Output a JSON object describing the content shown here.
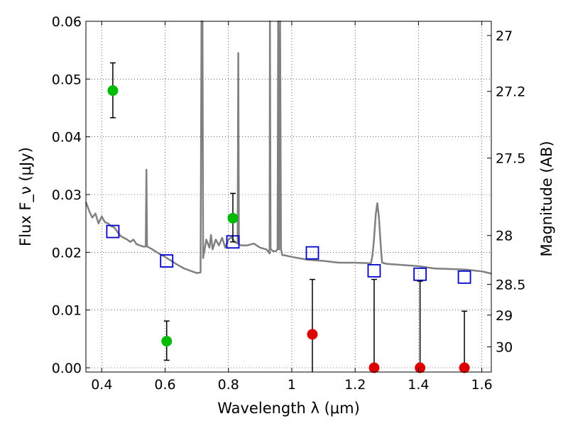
{
  "chart_data": {
    "type": "scatter",
    "xlabel": "Wavelength λ (μm)",
    "ylabel_left": "Flux F_ν (μJy)",
    "ylabel_right": "Magnitude (AB)",
    "xlim": [
      0.35,
      1.63
    ],
    "ylim": [
      0.0,
      0.06
    ],
    "grid": true,
    "x_ticks": [
      0.4,
      0.6,
      0.8,
      1.0,
      1.2,
      1.4,
      1.6
    ],
    "x_tick_labels": [
      "0.4",
      "0.6",
      "0.8",
      "1",
      "1.2",
      "1.4",
      "1.6"
    ],
    "y_ticks": [
      0.0,
      0.01,
      0.02,
      0.03,
      0.04,
      0.05,
      0.06
    ],
    "y_tick_labels": [
      "0.00",
      "0.01",
      "0.02",
      "0.03",
      "0.04",
      "0.05",
      "0.06"
    ],
    "mag_ticks": [
      27,
      27.2,
      27.5,
      28,
      28.5,
      29,
      30
    ],
    "mag_tick_labels": [
      "27",
      "27.2",
      "27.5",
      "28",
      "28.5",
      "29",
      "30"
    ],
    "model_spectrum": {
      "color": "#808080",
      "x": [
        0.35,
        0.36,
        0.37,
        0.38,
        0.39,
        0.4,
        0.41,
        0.42,
        0.43,
        0.44,
        0.45,
        0.46,
        0.47,
        0.48,
        0.49,
        0.5,
        0.51,
        0.52,
        0.53,
        0.539,
        0.541,
        0.543,
        0.55,
        0.56,
        0.58,
        0.6,
        0.62,
        0.64,
        0.66,
        0.68,
        0.7,
        0.712,
        0.715,
        0.718,
        0.72,
        0.722,
        0.725,
        0.73,
        0.74,
        0.745,
        0.75,
        0.76,
        0.77,
        0.78,
        0.79,
        0.8,
        0.81,
        0.82,
        0.829,
        0.831,
        0.833,
        0.835,
        0.84,
        0.86,
        0.88,
        0.9,
        0.92,
        0.93,
        0.931,
        0.933,
        0.935,
        0.94,
        0.95,
        0.955,
        0.957,
        0.96,
        0.963,
        0.966,
        0.97,
        0.975,
        1.0,
        1.05,
        1.1,
        1.15,
        1.2,
        1.25,
        1.255,
        1.26,
        1.265,
        1.27,
        1.275,
        1.28,
        1.285,
        1.3,
        1.35,
        1.4,
        1.45,
        1.5,
        1.55,
        1.6,
        1.63
      ],
      "y": [
        0.0287,
        0.0272,
        0.026,
        0.0267,
        0.025,
        0.0262,
        0.0252,
        0.025,
        0.0245,
        0.0243,
        0.0235,
        0.0228,
        0.0225,
        0.0222,
        0.0218,
        0.0222,
        0.0214,
        0.0212,
        0.021,
        0.021,
        0.0343,
        0.021,
        0.0208,
        0.0205,
        0.0198,
        0.0192,
        0.0185,
        0.0178,
        0.0172,
        0.0168,
        0.0164,
        0.0165,
        0.06,
        0.06,
        0.019,
        0.0197,
        0.0205,
        0.0222,
        0.0208,
        0.023,
        0.0205,
        0.0222,
        0.0212,
        0.0225,
        0.0208,
        0.0222,
        0.0226,
        0.0218,
        0.0215,
        0.0545,
        0.0215,
        0.0213,
        0.0212,
        0.0212,
        0.0215,
        0.0208,
        0.0205,
        0.0198,
        0.06,
        0.0205,
        0.0205,
        0.0202,
        0.0202,
        0.0205,
        0.06,
        0.0205,
        0.06,
        0.0205,
        0.0195,
        0.0195,
        0.0192,
        0.0187,
        0.0185,
        0.0182,
        0.0182,
        0.0181,
        0.0195,
        0.0225,
        0.0265,
        0.0285,
        0.0262,
        0.0218,
        0.0182,
        0.018,
        0.0178,
        0.0176,
        0.0172,
        0.0171,
        0.017,
        0.0167,
        0.0163
      ]
    },
    "model_photometry": {
      "color": "#0000cc",
      "x": [
        0.435,
        0.605,
        0.814,
        1.065,
        1.26,
        1.405,
        1.545
      ],
      "y": [
        0.0236,
        0.0185,
        0.0218,
        0.0199,
        0.0168,
        0.0162,
        0.0157
      ]
    },
    "detections": {
      "color": "#00bb00",
      "x": [
        0.435,
        0.605,
        0.814
      ],
      "y": [
        0.048,
        0.0046,
        0.0259
      ],
      "yerr_low": [
        0.0433,
        0.0013,
        0.0218
      ],
      "yerr_high": [
        0.0528,
        0.0081,
        0.0302
      ]
    },
    "non_detections": {
      "color": "#dd0000",
      "x": [
        1.065,
        1.26,
        1.405,
        1.545
      ],
      "y": [
        0.0058,
        0.0,
        0.0,
        0.0
      ],
      "yerr_low": [
        -0.001,
        -0.001,
        -0.001,
        -0.001
      ],
      "yerr_high": [
        0.0153,
        0.0153,
        0.015,
        0.0098
      ]
    }
  }
}
